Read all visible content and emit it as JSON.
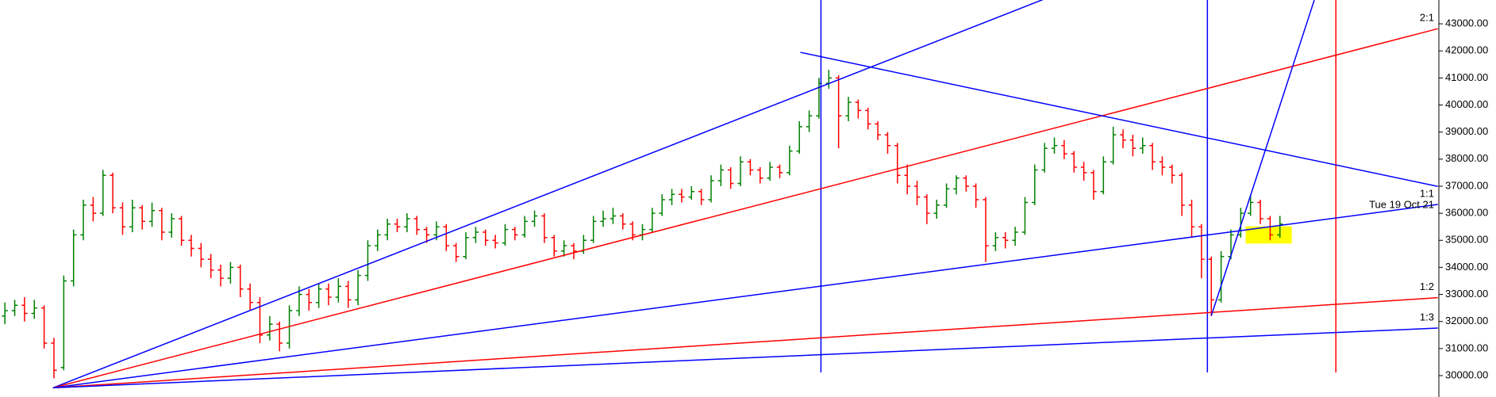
{
  "chart_data": {
    "type": "ohlc",
    "up_color": "#008000",
    "down_color": "#ff0000",
    "xlim": [
      -0.5,
      146.2
    ],
    "ylim": [
      29210,
      43880
    ],
    "yticks": [
      {
        "value": 30000,
        "label": "30000.00"
      },
      {
        "value": 31000,
        "label": "31000.00"
      },
      {
        "value": 32000,
        "label": "32000.00"
      },
      {
        "value": 33000,
        "label": "33000.00"
      },
      {
        "value": 34000,
        "label": "34000.00"
      },
      {
        "value": 35000,
        "label": "35000.00"
      },
      {
        "value": 36000,
        "label": "36000.00"
      },
      {
        "value": 37000,
        "label": "37000.00"
      },
      {
        "value": 38000,
        "label": "38000.00"
      },
      {
        "value": 39000,
        "label": "39000.00"
      },
      {
        "value": 40000,
        "label": "40000.00"
      },
      {
        "value": 41000,
        "label": "41000.00"
      },
      {
        "value": 42000,
        "label": "42000.00"
      },
      {
        "value": 43000,
        "label": "43000.00"
      }
    ],
    "ohlc": [
      [
        32200,
        32700,
        31900,
        32400
      ],
      [
        32400,
        32800,
        32200,
        32600
      ],
      [
        32600,
        32900,
        32000,
        32300
      ],
      [
        32300,
        32800,
        32100,
        32500
      ],
      [
        32500,
        32600,
        31000,
        31200
      ],
      [
        31200,
        31400,
        29900,
        30200
      ],
      [
        30300,
        33700,
        30200,
        33500
      ],
      [
        33500,
        35400,
        33300,
        35200
      ],
      [
        35200,
        36500,
        35000,
        36300
      ],
      [
        36300,
        36600,
        35700,
        36000
      ],
      [
        36000,
        37600,
        35900,
        37400
      ],
      [
        37400,
        37500,
        36000,
        36200
      ],
      [
        36200,
        36400,
        35200,
        35500
      ],
      [
        35500,
        36500,
        35300,
        36200
      ],
      [
        36200,
        36300,
        35400,
        35700
      ],
      [
        35700,
        36400,
        35500,
        36100
      ],
      [
        36100,
        36200,
        35000,
        35300
      ],
      [
        35300,
        36000,
        35100,
        35800
      ],
      [
        35800,
        35900,
        34800,
        35000
      ],
      [
        35000,
        35200,
        34400,
        34700
      ],
      [
        34700,
        34900,
        34000,
        34300
      ],
      [
        34300,
        34500,
        33600,
        33900
      ],
      [
        33900,
        34100,
        33300,
        33600
      ],
      [
        33600,
        34200,
        33400,
        34000
      ],
      [
        34000,
        34100,
        32900,
        33200
      ],
      [
        33200,
        33400,
        32400,
        32700
      ],
      [
        32700,
        32900,
        31200,
        31500
      ],
      [
        31500,
        32200,
        31300,
        31900
      ],
      [
        31900,
        32000,
        30900,
        31200
      ],
      [
        31200,
        32600,
        31000,
        32400
      ],
      [
        32400,
        33300,
        32200,
        33000
      ],
      [
        33000,
        33200,
        32400,
        32700
      ],
      [
        32700,
        33400,
        32500,
        33200
      ],
      [
        33200,
        33400,
        32600,
        32900
      ],
      [
        32900,
        33600,
        32700,
        33300
      ],
      [
        33300,
        33500,
        32500,
        32800
      ],
      [
        32800,
        33900,
        32600,
        33700
      ],
      [
        33700,
        35000,
        33500,
        34800
      ],
      [
        34800,
        35400,
        34600,
        35200
      ],
      [
        35200,
        35800,
        35000,
        35600
      ],
      [
        35600,
        35800,
        35300,
        35500
      ],
      [
        35500,
        36000,
        35300,
        35800
      ],
      [
        35800,
        35900,
        35200,
        35400
      ],
      [
        35400,
        35500,
        34900,
        35200
      ],
      [
        35200,
        35700,
        35000,
        35500
      ],
      [
        35500,
        35600,
        34600,
        34800
      ],
      [
        34800,
        34900,
        34200,
        34400
      ],
      [
        34400,
        35300,
        34300,
        35100
      ],
      [
        35100,
        35500,
        34900,
        35300
      ],
      [
        35300,
        35400,
        34800,
        35000
      ],
      [
        35000,
        35200,
        34700,
        34900
      ],
      [
        34900,
        35600,
        34800,
        35400
      ],
      [
        35400,
        35500,
        35000,
        35200
      ],
      [
        35200,
        35900,
        35100,
        35700
      ],
      [
        35700,
        36100,
        35500,
        35900
      ],
      [
        35900,
        36000,
        34900,
        35100
      ],
      [
        35100,
        35200,
        34400,
        34600
      ],
      [
        34600,
        35000,
        34400,
        34800
      ],
      [
        34800,
        34900,
        34300,
        34600
      ],
      [
        34600,
        35200,
        34500,
        35000
      ],
      [
        35000,
        35900,
        34900,
        35700
      ],
      [
        35700,
        36100,
        35500,
        35800
      ],
      [
        35800,
        36200,
        35600,
        35900
      ],
      [
        35900,
        36000,
        35400,
        35600
      ],
      [
        35600,
        35700,
        35000,
        35200
      ],
      [
        35200,
        35600,
        35000,
        35400
      ],
      [
        35400,
        36200,
        35300,
        36000
      ],
      [
        36000,
        36700,
        35900,
        36500
      ],
      [
        36500,
        36900,
        36300,
        36700
      ],
      [
        36700,
        36900,
        36400,
        36600
      ],
      [
        36600,
        37000,
        36500,
        36800
      ],
      [
        36800,
        36900,
        36300,
        36500
      ],
      [
        36500,
        37400,
        36400,
        37200
      ],
      [
        37200,
        37800,
        37000,
        37600
      ],
      [
        37600,
        37700,
        36900,
        37100
      ],
      [
        37100,
        38100,
        37000,
        37900
      ],
      [
        37900,
        38000,
        37400,
        37600
      ],
      [
        37600,
        37700,
        37100,
        37300
      ],
      [
        37300,
        37900,
        37200,
        37700
      ],
      [
        37700,
        37800,
        37300,
        37500
      ],
      [
        37500,
        38500,
        37400,
        38300
      ],
      [
        38300,
        39400,
        38200,
        39200
      ],
      [
        39200,
        39800,
        39000,
        39600
      ],
      [
        39600,
        41000,
        39500,
        40800
      ],
      [
        40800,
        41300,
        40600,
        41000
      ],
      [
        41000,
        41100,
        38400,
        39600
      ],
      [
        39600,
        40300,
        39400,
        40100
      ],
      [
        40100,
        40200,
        39500,
        39800
      ],
      [
        39800,
        39900,
        39100,
        39300
      ],
      [
        39300,
        39400,
        38700,
        38900
      ],
      [
        38900,
        39000,
        38200,
        38500
      ],
      [
        38500,
        38600,
        37100,
        37400
      ],
      [
        37400,
        37800,
        36700,
        37000
      ],
      [
        37000,
        37200,
        36300,
        36600
      ],
      [
        36600,
        36700,
        35600,
        36000
      ],
      [
        36000,
        36500,
        35800,
        36300
      ],
      [
        36300,
        37100,
        36200,
        36900
      ],
      [
        36900,
        37400,
        36700,
        37300
      ],
      [
        37300,
        37400,
        36800,
        37000
      ],
      [
        37000,
        37100,
        36200,
        36500
      ],
      [
        36500,
        36600,
        34200,
        34800
      ],
      [
        34800,
        35300,
        34600,
        35100
      ],
      [
        35100,
        35300,
        34700,
        35000
      ],
      [
        35000,
        35500,
        34800,
        35300
      ],
      [
        35300,
        36600,
        35200,
        36400
      ],
      [
        36400,
        37800,
        36300,
        37600
      ],
      [
        37600,
        38600,
        37500,
        38400
      ],
      [
        38400,
        38800,
        38200,
        38500
      ],
      [
        38500,
        38700,
        38000,
        38200
      ],
      [
        38200,
        38300,
        37500,
        37700
      ],
      [
        37700,
        37900,
        37200,
        37500
      ],
      [
        37500,
        37600,
        36500,
        36800
      ],
      [
        36800,
        38100,
        36700,
        37900
      ],
      [
        37900,
        39200,
        37800,
        38900
      ],
      [
        38900,
        39100,
        38400,
        38700
      ],
      [
        38700,
        38900,
        38100,
        38400
      ],
      [
        38400,
        38800,
        38200,
        38500
      ],
      [
        38500,
        38600,
        37600,
        37900
      ],
      [
        37900,
        38100,
        37400,
        37700
      ],
      [
        37700,
        37800,
        37100,
        37400
      ],
      [
        37400,
        37500,
        35900,
        36300
      ],
      [
        36300,
        36500,
        35100,
        35500
      ],
      [
        35500,
        35600,
        33600,
        34300
      ],
      [
        34300,
        34400,
        32200,
        32800
      ],
      [
        32800,
        34600,
        32700,
        34400
      ],
      [
        34400,
        35400,
        34300,
        35200
      ],
      [
        35200,
        36200,
        35100,
        36000
      ],
      [
        36000,
        36700,
        35900,
        36400
      ],
      [
        36400,
        36500,
        35600,
        35800
      ],
      [
        35800,
        35900,
        35000,
        35200
      ],
      [
        35200,
        35900,
        35100,
        35600
      ]
    ],
    "lines": [
      {
        "color": "#0000ff",
        "x": [
          4.9,
          106
        ],
        "y": [
          29550,
          43920
        ]
      },
      {
        "color": "#ff0000",
        "x": [
          4.9,
          146.1
        ],
        "y": [
          29550,
          42820
        ],
        "label": "2:1"
      },
      {
        "color": "#0000ff",
        "x": [
          4.9,
          146.1
        ],
        "y": [
          29550,
          36324
        ],
        "label": "1:1"
      },
      {
        "color": "#ff0000",
        "x": [
          4.9,
          146.1
        ],
        "y": [
          29550,
          32880
        ],
        "label": "1:2"
      },
      {
        "color": "#0000ff",
        "x": [
          4.9,
          146.1
        ],
        "y": [
          29550,
          31756
        ],
        "label": "1:3"
      },
      {
        "color": "#0000ff",
        "x": [
          81.1,
          146.1
        ],
        "y": [
          41946,
          36992
        ]
      },
      {
        "color": "#0000ff",
        "x": [
          123.0,
          133.5
        ],
        "y": [
          32213,
          43878
        ]
      }
    ],
    "vlines": [
      {
        "x": 83.2,
        "color": "#0000ff"
      },
      {
        "x": 122.6,
        "color": "#0000ff"
      },
      {
        "x": 135.7,
        "color": "#ff0000"
      }
    ],
    "highlight": {
      "x": [
        126.5,
        131.2
      ],
      "y": [
        34880,
        35515
      ],
      "color": "#ffff00"
    },
    "date_label": "Tue 19 Oct 21"
  }
}
